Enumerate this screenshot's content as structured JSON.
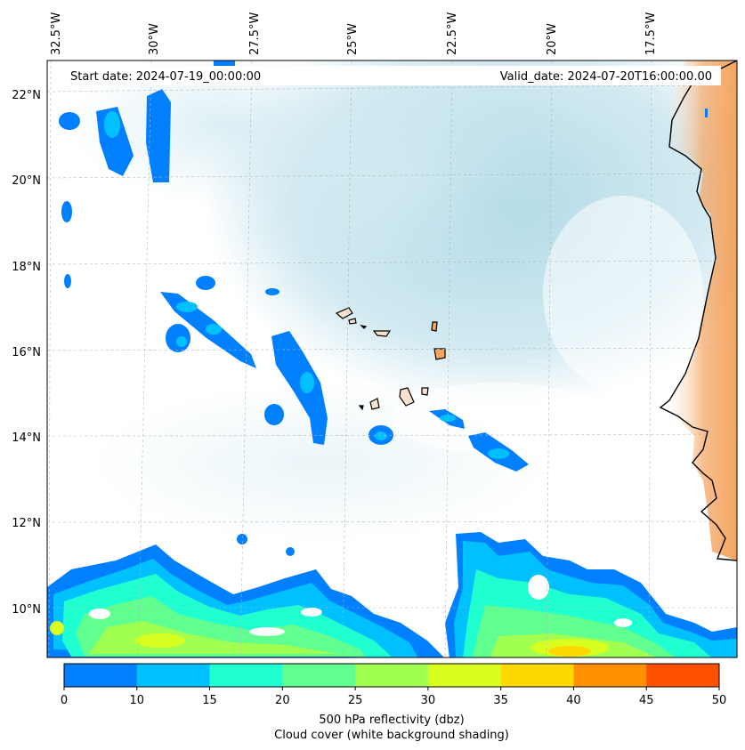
{
  "map": {
    "header": {
      "start_date": "Start date: 2024-07-19_00:00:00",
      "valid_date": "Valid_date: 2024-07-20T16:00:00.00"
    },
    "lon_labels": [
      "32.5°W",
      "30°W",
      "27.5°W",
      "25°W",
      "22.5°W",
      "20°W",
      "17.5°W"
    ],
    "lat_labels": [
      "22°N",
      "20°N",
      "18°N",
      "16°N",
      "14°N",
      "12°N",
      "10°N"
    ],
    "colors": {
      "cloud_shading": "#add8e6",
      "land_fill": "#f4a460",
      "coastline": "#000000"
    }
  },
  "colorbar": {
    "title_line1": "500 hPa reflectivity (dbz)",
    "title_line2": "Cloud cover (white background shading)",
    "ticks": [
      "0",
      "10",
      "15",
      "20",
      "25",
      "30",
      "35",
      "40",
      "45",
      "50"
    ],
    "colors": [
      "#0080ff",
      "#00c0ff",
      "#20ffd0",
      "#60ff90",
      "#a0ff50",
      "#d8ff20",
      "#ffd800",
      "#ff9000",
      "#ff5000"
    ]
  }
}
